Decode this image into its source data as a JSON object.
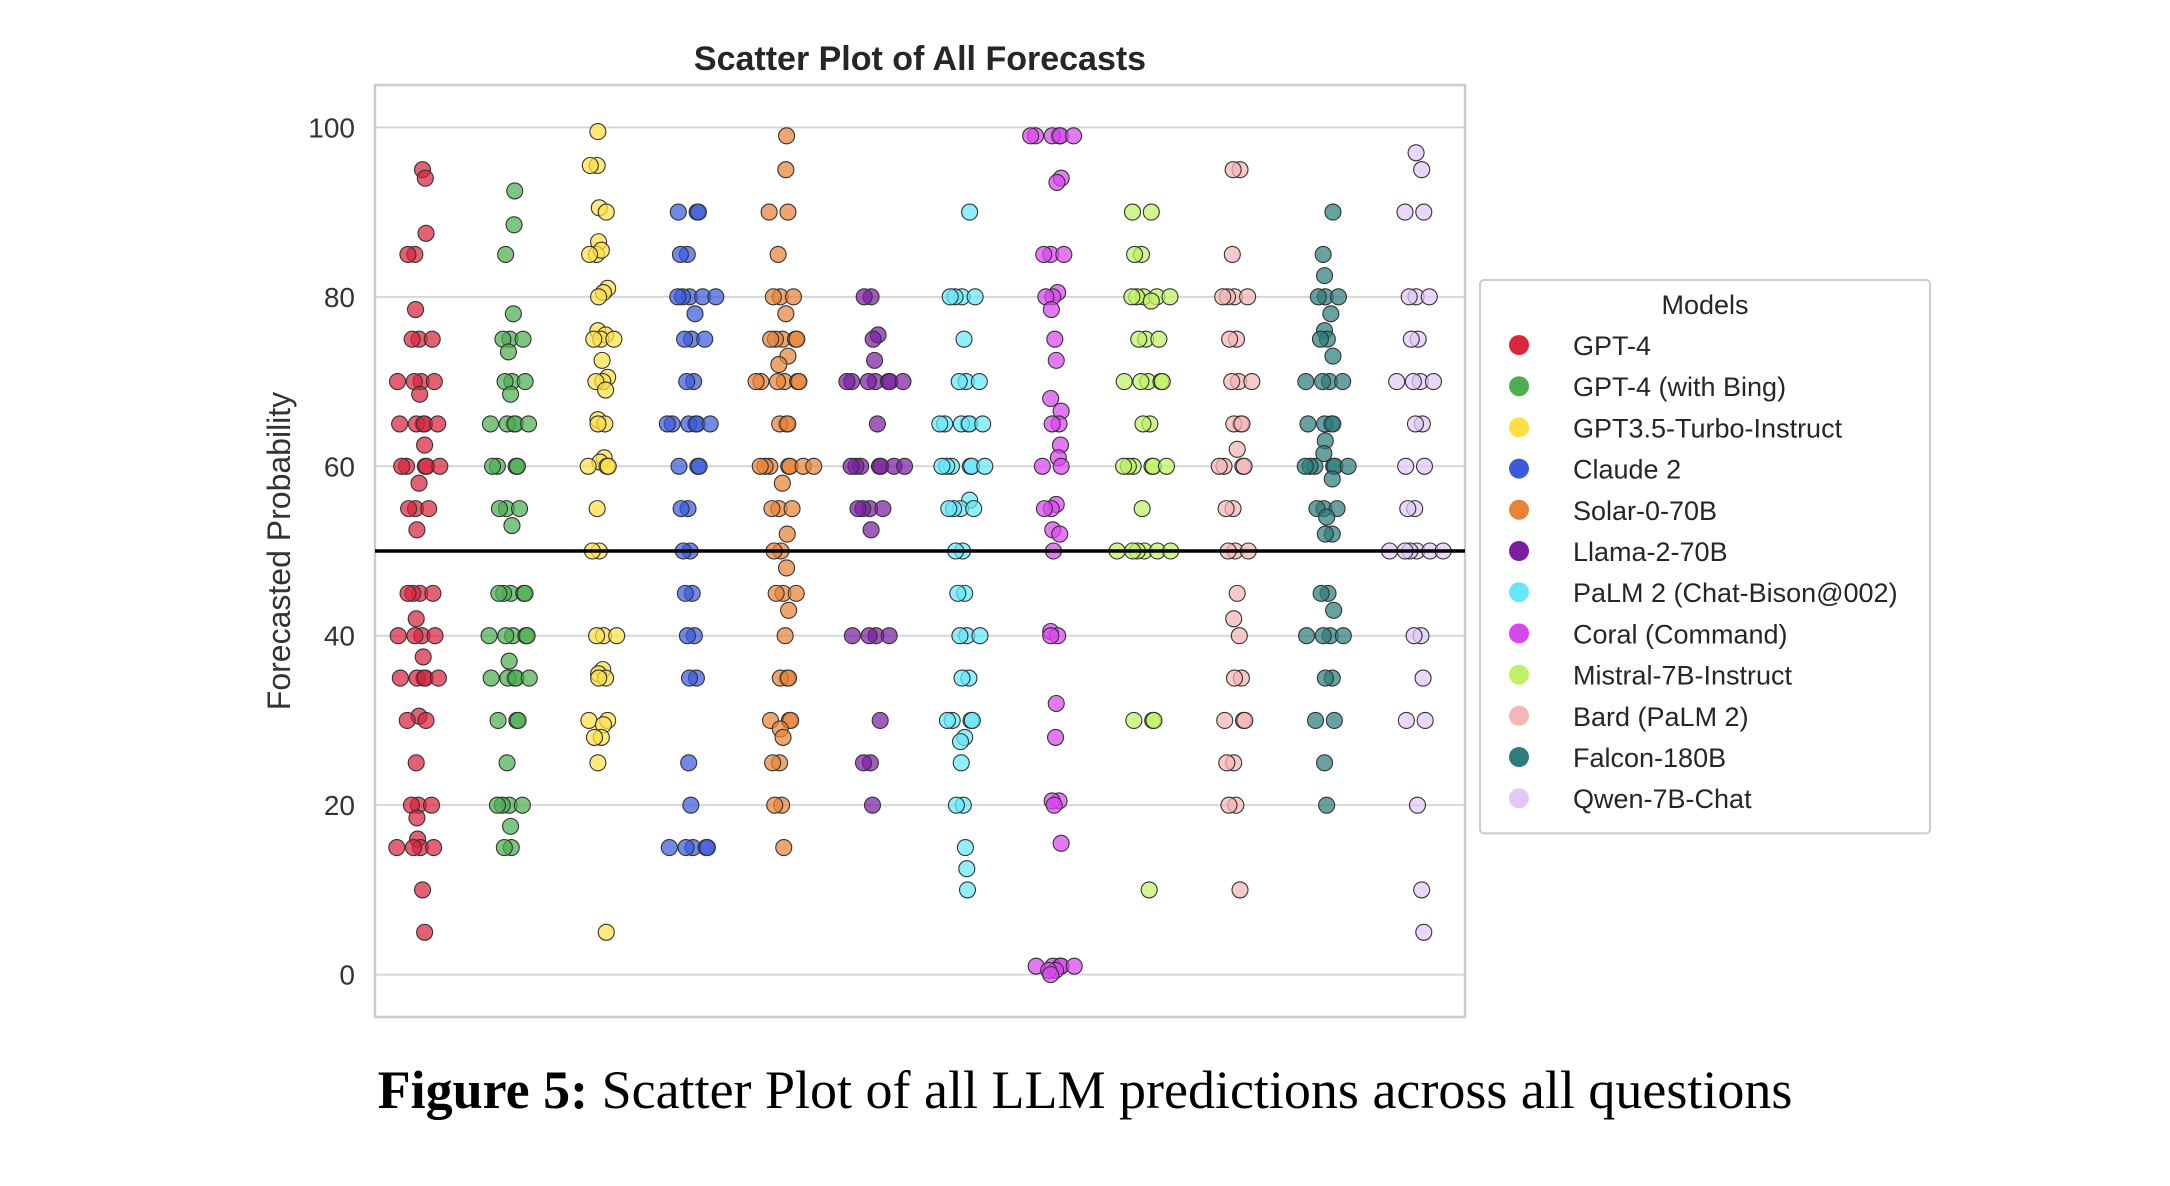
{
  "chart_data": {
    "type": "scatter",
    "title": "Scatter Plot of All Forecasts",
    "xlabel": "",
    "ylabel": "Forecasted Probability",
    "ylim": [
      -5,
      105
    ],
    "yticks": [
      0,
      20,
      40,
      60,
      80,
      100
    ],
    "grid": true,
    "reference_line": 50,
    "legend": {
      "title": "Models",
      "position": "right-outside"
    },
    "series": [
      {
        "name": "GPT-4",
        "color": "#d7263d",
        "values": [
          95,
          94,
          87.5,
          85,
          85,
          78.5,
          75,
          75,
          75,
          70,
          70,
          70,
          70,
          68.5,
          65,
          65,
          65,
          65,
          65,
          62.5,
          60,
          60,
          60,
          60,
          60,
          58,
          55,
          55,
          55,
          52.5,
          45,
          45,
          45,
          45,
          42,
          40,
          40,
          40,
          40,
          37.5,
          35,
          35,
          35,
          35,
          35,
          30.5,
          30,
          30,
          25,
          20,
          20,
          20,
          18.5,
          16,
          15,
          15,
          15,
          15,
          10,
          5
        ]
      },
      {
        "name": "GPT-4 (with Bing)",
        "color": "#4caf50",
        "values": [
          92.5,
          88.5,
          85,
          78,
          75,
          75,
          75,
          73.5,
          70,
          70,
          70,
          68.5,
          65,
          65,
          65,
          65,
          65,
          60,
          60,
          60,
          60,
          55,
          55,
          55,
          53,
          45,
          45,
          45,
          45,
          45,
          40,
          40,
          40,
          40,
          40,
          37,
          35,
          35,
          35,
          35,
          35,
          30,
          30,
          30,
          25,
          20,
          20,
          20,
          20,
          17.5,
          15,
          15
        ]
      },
      {
        "name": "GPT3.5-Turbo-Instruct",
        "color": "#fde047",
        "values": [
          99.5,
          95.5,
          95.5,
          90.5,
          90,
          86.5,
          85,
          85.5,
          85,
          81,
          80.5,
          80,
          76,
          75.5,
          75,
          75,
          75,
          72.5,
          70.5,
          70,
          70,
          69,
          65.5,
          65,
          65,
          61,
          60.5,
          60,
          60,
          60,
          55,
          50,
          50,
          40,
          40,
          40,
          36,
          35.5,
          35,
          35,
          30,
          30,
          29.5,
          28,
          28,
          25,
          5
        ]
      },
      {
        "name": "Claude 2",
        "color": "#3b5bdb",
        "values": [
          90,
          90,
          90,
          85,
          85,
          80,
          80,
          80,
          80,
          80,
          78,
          75,
          75,
          75,
          70,
          70,
          65,
          65,
          65,
          65,
          65,
          65,
          60,
          60,
          60,
          55,
          55,
          50,
          50,
          45,
          45,
          40,
          40,
          35,
          35,
          25,
          20,
          15,
          15,
          15,
          15,
          15
        ]
      },
      {
        "name": "Solar-0-70B",
        "color": "#e8843a",
        "values": [
          99,
          95,
          90,
          90,
          85,
          80,
          80,
          80,
          78,
          75,
          75,
          75,
          75,
          75,
          73,
          72,
          70,
          70,
          70,
          70,
          70,
          70,
          65,
          65,
          65,
          60,
          60,
          60,
          60,
          60,
          60,
          60,
          58,
          55,
          55,
          55,
          52,
          50,
          50,
          48,
          45,
          45,
          45,
          43,
          40,
          35,
          35,
          35,
          30,
          30,
          30,
          29,
          28,
          25,
          25,
          20,
          20,
          15
        ]
      },
      {
        "name": "Llama-2-70B",
        "color": "#7b1fa2",
        "values": [
          80,
          80,
          75.5,
          75,
          72.5,
          70,
          70,
          70,
          70,
          70,
          70,
          70,
          65,
          60,
          60,
          60,
          60,
          60,
          60,
          60,
          55,
          55,
          55,
          55,
          52.5,
          40,
          40,
          40,
          40,
          30,
          25,
          25,
          20
        ]
      },
      {
        "name": "PaLM 2 (Chat-Bison@002)",
        "color": "#67e8f9",
        "values": [
          90,
          80,
          80,
          80,
          80,
          75,
          70,
          70,
          70,
          65,
          65,
          65,
          65,
          65,
          65,
          60,
          60,
          60,
          60,
          60,
          60,
          56,
          55,
          55,
          55,
          55,
          50,
          50,
          45,
          45,
          40,
          40,
          40,
          35,
          35,
          30,
          30,
          30,
          30,
          28,
          27.5,
          25,
          20,
          20,
          15,
          12.5,
          10
        ]
      },
      {
        "name": "Coral (Command)",
        "color": "#d946ef",
        "values": [
          99,
          99,
          99,
          99,
          99,
          99,
          94,
          93.5,
          85,
          85,
          85,
          80.5,
          80,
          80,
          78.5,
          75,
          72.5,
          68,
          66.5,
          65,
          65,
          62.5,
          61,
          60,
          60,
          55.5,
          55,
          55,
          52.5,
          52,
          50,
          40.5,
          40,
          40,
          32,
          28,
          20.5,
          20.5,
          20,
          15.5,
          1,
          1,
          1,
          1,
          1,
          0.5,
          0.5,
          0
        ]
      },
      {
        "name": "Mistral-7B-Instruct",
        "color": "#bef264",
        "values": [
          90,
          90,
          85,
          85,
          80,
          80,
          80,
          80,
          80,
          79.5,
          75,
          75,
          75,
          70,
          70,
          70,
          70,
          70,
          65,
          65,
          60,
          60,
          60,
          60,
          60,
          60,
          55,
          50,
          50,
          50,
          50,
          50,
          50,
          30,
          30,
          30,
          10
        ]
      },
      {
        "name": "Bard (PaLM 2)",
        "color": "#f4b6b6",
        "values": [
          95,
          95,
          85,
          80,
          80,
          80,
          80,
          75,
          75,
          70,
          70,
          70,
          65,
          65,
          65,
          62,
          60,
          60,
          60,
          60,
          55,
          55,
          50,
          50,
          50,
          45,
          42,
          40,
          35,
          35,
          30,
          30,
          30,
          25,
          25,
          20,
          20,
          10
        ]
      },
      {
        "name": "Falcon-180B",
        "color": "#2e7d7d",
        "values": [
          90,
          85,
          82.5,
          80,
          80,
          80,
          78,
          76,
          75,
          75,
          73,
          70,
          70,
          70,
          70,
          65,
          65,
          65,
          65,
          63,
          61.5,
          60,
          60,
          60,
          60,
          60,
          60,
          58.5,
          55,
          55,
          55,
          54,
          52,
          52,
          45,
          45,
          43,
          40,
          40,
          40,
          40,
          35,
          35,
          30,
          30,
          25,
          20
        ]
      },
      {
        "name": "Qwen-7B-Chat",
        "color": "#e2c8f7",
        "values": [
          97,
          95,
          90,
          90,
          80,
          80,
          80,
          75,
          75,
          70,
          70,
          70,
          70,
          65,
          65,
          60,
          60,
          55,
          55,
          50,
          50,
          50,
          50,
          50,
          50,
          40,
          40,
          35,
          30,
          30,
          20,
          10,
          5
        ]
      }
    ]
  },
  "caption": {
    "label": "Figure 5:",
    "text": "Scatter Plot of all LLM predictions across all questions"
  }
}
